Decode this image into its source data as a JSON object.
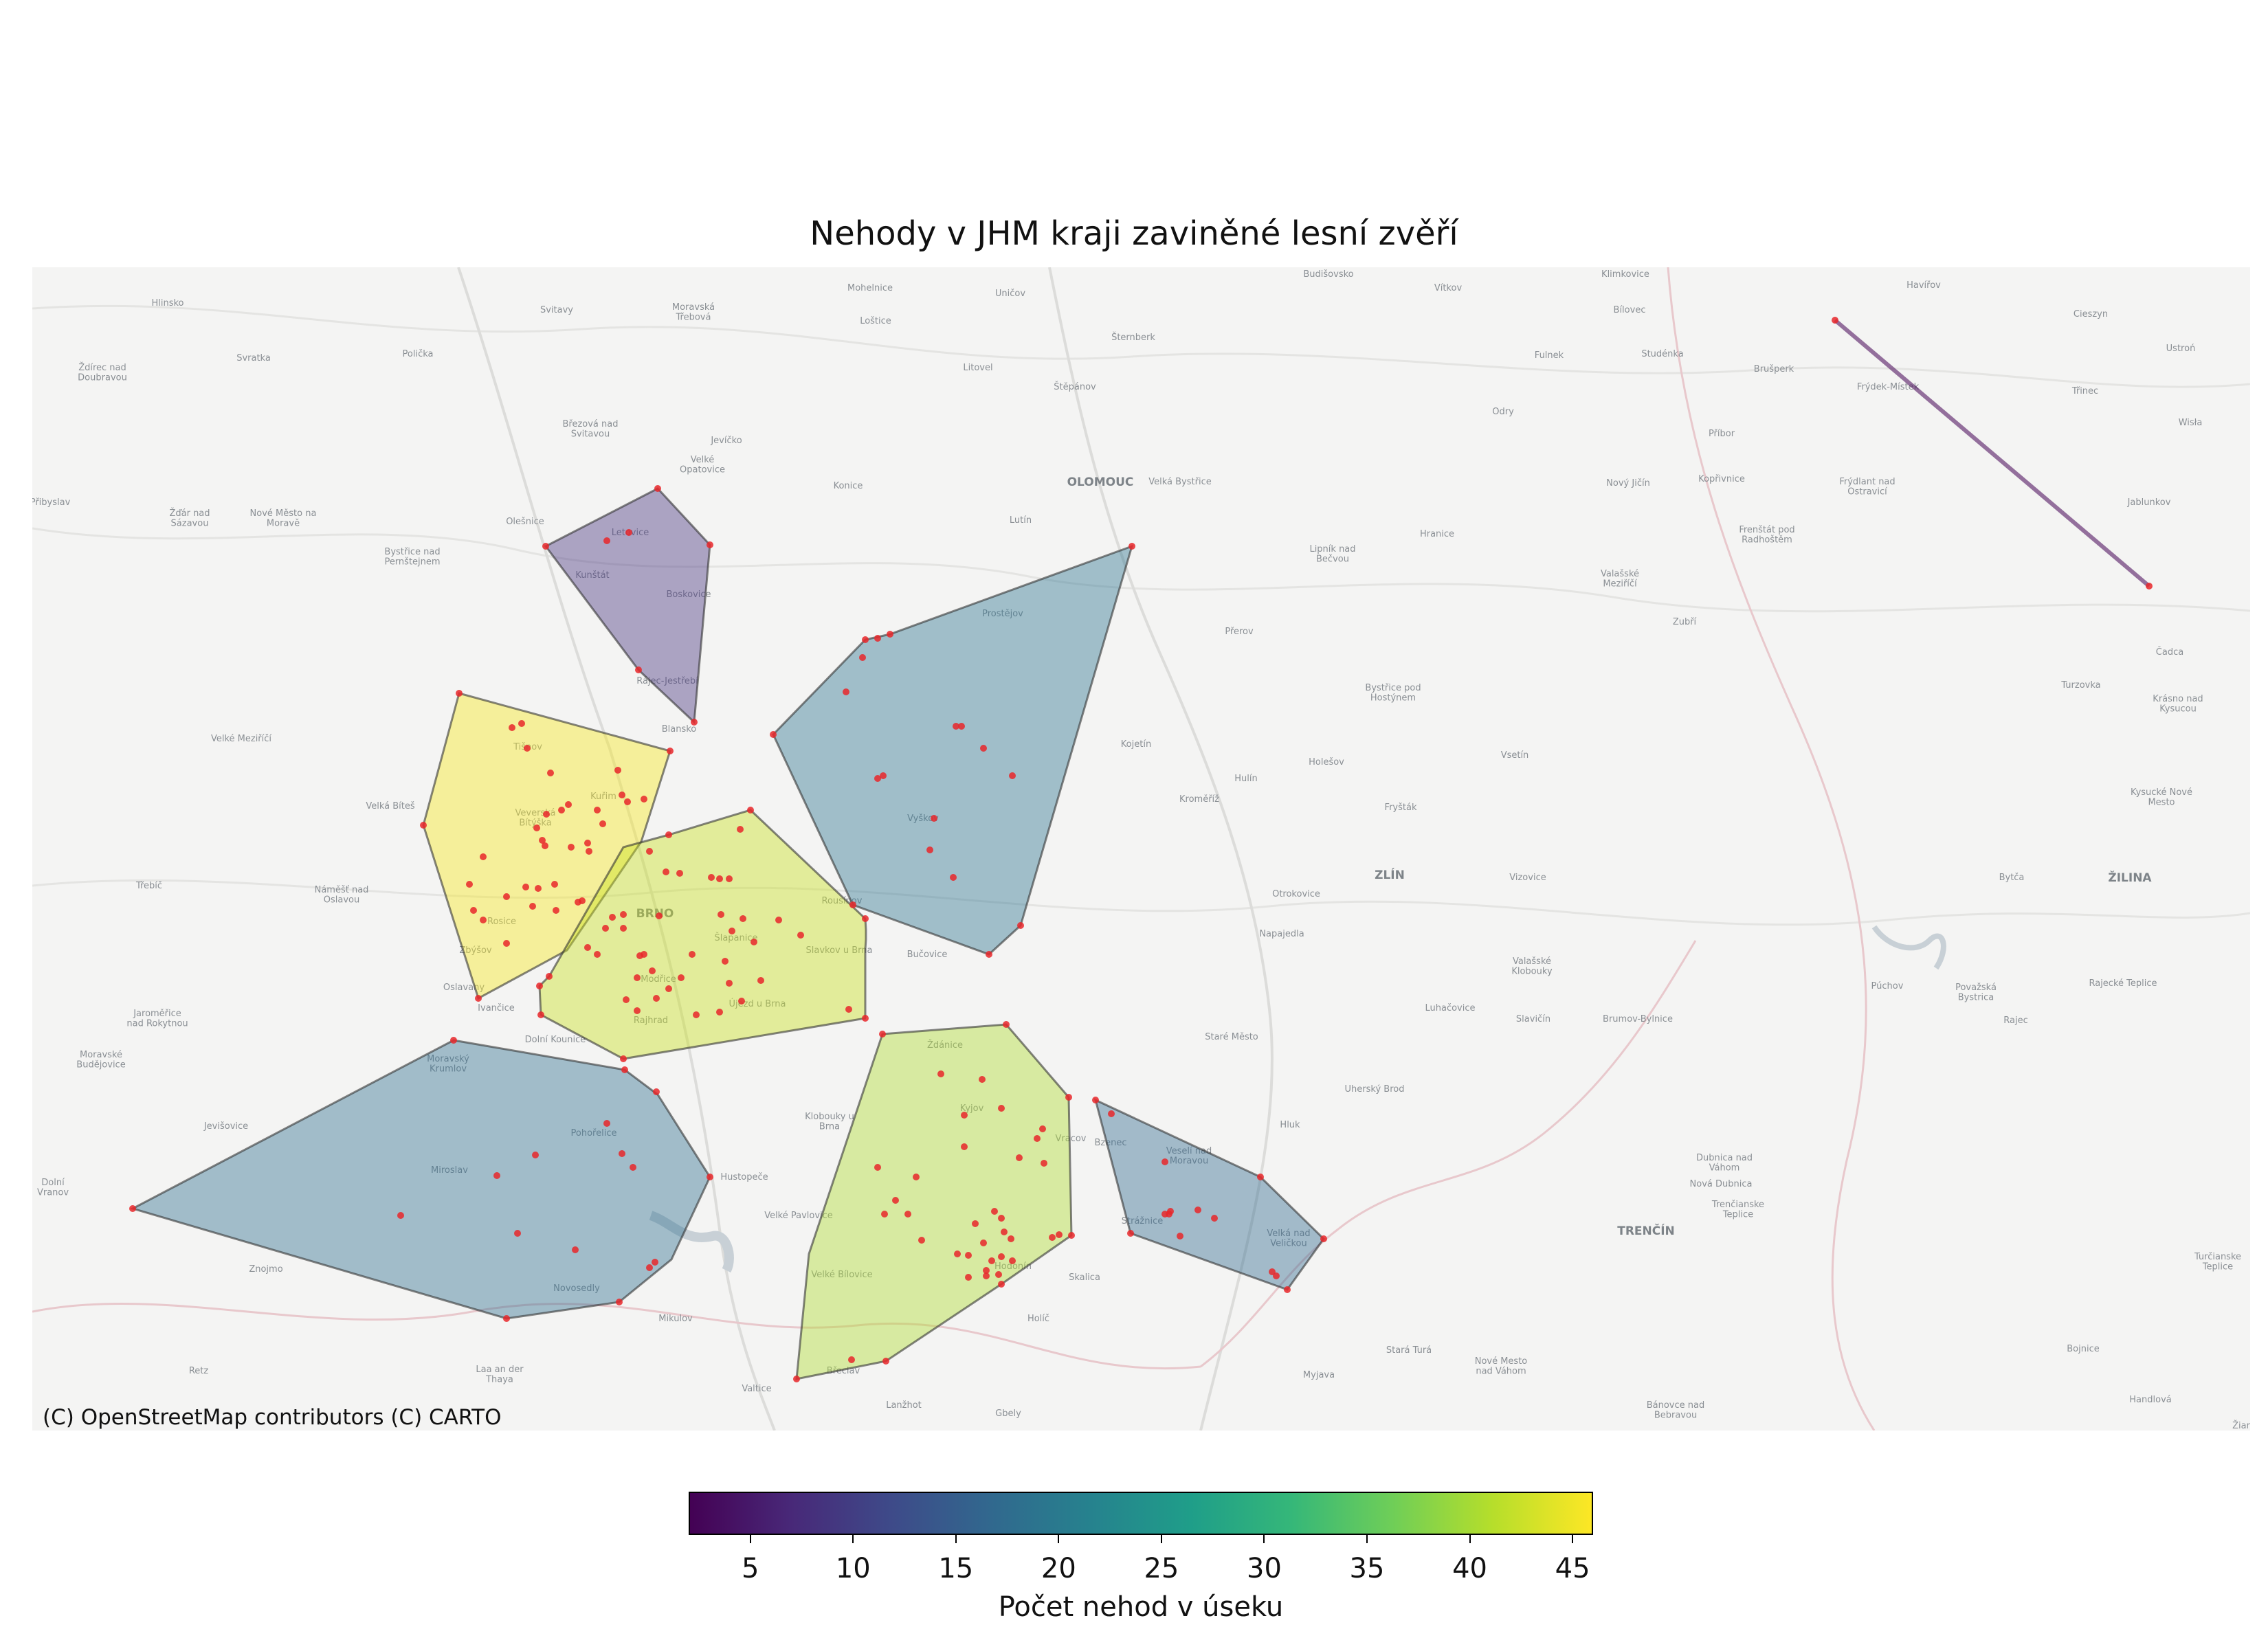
{
  "title": "Nehody v JHM kraji zaviněné lesní zvěří",
  "attribution": "(C) OpenStreetMap contributors (C) CARTO",
  "colorbar": {
    "label": "Počet nehod v úseku",
    "min": 2,
    "max": 46,
    "ticks": [
      5,
      10,
      15,
      20,
      25,
      30,
      35,
      40,
      45
    ],
    "colormap": "viridis"
  },
  "colors": {
    "map_background": "#f4f4f3",
    "point": "#e8272a",
    "polygon_outline": "#333333"
  },
  "places": {
    "hlinsko": "Hlinsko",
    "svitavy": "Svitavy",
    "moravska_trebova": "Moravská\nTřebová",
    "mohelnice": "Mohelnice",
    "unicov": "Uničov",
    "bruntal_budisov": "Budišovsko",
    "klimkovice": "Klimkovice",
    "vitkov": "Vítkov",
    "havirov": "Havířov",
    "cieszyn": "Cieszyn",
    "zdirec": "Ždírec nad\nDoubravou",
    "svratka": "Svratka",
    "policka": "Polička",
    "lostice": "Loštice",
    "sternberk": "Šternberk",
    "bilovec": "Bílovec",
    "ustron": "Ustroń",
    "litovel": "Litovel",
    "stepanov": "Štěpánov",
    "fulnek": "Fulnek",
    "studenka": "Studénka",
    "bruperk": "Brušperk",
    "frydek": "Frýdek-Místek",
    "trinec": "Třinec",
    "wisla": "Wisła",
    "brezova": "Březová nad\nSvitavou",
    "jevicko": "Jevíčko",
    "odry": "Odry",
    "pribor": "Příbor",
    "velke_opatovice": "Velké\nOpatovice",
    "konice": "Konice",
    "olomouc": "OLOMOUC",
    "velka_bystrice": "Velká Bystřice",
    "novy_jicin": "Nový Jičín",
    "koprivnice": "Kopřivnice",
    "frydlant": "Frýdlant nad\nOstravicí",
    "jablunkov": "Jablunkov",
    "pribyslav": "Přibyslav",
    "zdar": "Žďár nad\nSázavou",
    "nove_mesto": "Nové Město na\nMoravě",
    "olesnice": "Olešnice",
    "letovice": "Letovice",
    "lutin": "Lutín",
    "hranice": "Hranice",
    "frenstat": "Frenštát pod\nRadhoštěm",
    "bystrice_p": "Bystřice nad\nPernštejnem",
    "kunstat": "Kunštát",
    "boskovice": "Boskovice",
    "lipnik": "Lipník nad\nBečvou",
    "valmez": "Valašské\nMeziříčí",
    "zubri": "Zubří",
    "prostejov": "Prostějov",
    "prerov": "Přerov",
    "cadca": "Čadca",
    "rajec_jestrebi": "Rájec-Jestřebí",
    "blansko": "Blansko",
    "bystrice_h": "Bystřice pod\nHostýnem",
    "turzovka": "Turzovka",
    "krasno": "Krásno nad\nKysucou",
    "velke_mezirici": "Velké Meziříčí",
    "tisnov": "Tišnov",
    "kojetin": "Kojetín",
    "holesov": "Holešov",
    "vsetin": "Vsetín",
    "kurim": "Kuřim",
    "velka_bites": "Velká Bíteš",
    "veverska": "Veverská\nBítýška",
    "hulin": "Hulín",
    "kromeriz": "Kroměříž",
    "frystak": "Fryšták",
    "kysucke": "Kysucké Nové\nMesto",
    "vyskov": "Vyškov",
    "trebic": "Třebíč",
    "namest": "Náměšť nad\nOslavou",
    "brno": "BRNO",
    "zlin": "ZLÍN",
    "vizovice": "Vizovice",
    "bytca": "Bytča",
    "zilina": "ŽILINA",
    "rousinov": "Rousínov",
    "rosice": "Rosice",
    "otrokovice": "Otrokovice",
    "slapanice": "Šlapanice",
    "slavkov": "Slavkov u Brna",
    "bucovice": "Bučovice",
    "zbysov": "Zbýšov",
    "napajedla": "Napajedla",
    "valasske_klobouky": "Valašské\nKlobouky",
    "puchov": "Púchov",
    "povazska": "Považská\nBystrica",
    "rajecke": "Rajecké Teplice",
    "oslavany": "Oslavany",
    "ivancice": "Ivančice",
    "modrice": "Modřice",
    "ujezd": "Újezd u Brna",
    "luhacovice": "Luhačovice",
    "slavicin": "Slavičín",
    "brumov": "Brumov-Bylnice",
    "rajec": "Rajec",
    "jaromerice": "Jaroměřice\nnad Rokytnou",
    "dolni_kounice": "Dolní Kounice",
    "rajhrad": "Rajhrad",
    "zdanice": "Ždánice",
    "stare_mesto": "Staré Město",
    "moravske_budejovice": "Moravské\nBudějovice",
    "moravsky_krumlov": "Moravský\nKrumlov",
    "uhersky_brod": "Uherský Brod",
    "kyjov": "Kyjov",
    "klobouky": "Klobouky u\nBrna",
    "jevisovice": "Jevišovice",
    "pohorelice": "Pohořelice",
    "bzenec": "Bzenec",
    "veseli": "Veselí nad\nMoravou",
    "hluk": "Hluk",
    "vracov": "Vracov",
    "dubnica": "Dubnica nad\nVáhom",
    "miroslav": "Miroslav",
    "hustopece": "Hustopeče",
    "nova_dubnica": "Nová Dubnica",
    "trencianske": "Trenčianske\nTeplice",
    "velke_pavlovice": "Velké Pavlovice",
    "straznice": "Strážnice",
    "velka_nad_velickou": "Velká nad\nVeličkou",
    "trencin": "TRENČÍN",
    "dolni_vranov": "Dolní\nVranov",
    "znojmo": "Znojmo",
    "novosedly": "Novosedly",
    "velke_bilovice": "Velké Bílovice",
    "hodonin": "Hodonín",
    "skalica": "Skalica",
    "turcianske": "Turčianske\nTeplice",
    "mikulov": "Mikulov",
    "holic": "Holíč",
    "stara_tura": "Stará Turá",
    "nove_mesto_vah": "Nové Mesto\nnad Váhom",
    "bojnice": "Bojnice",
    "retz": "Retz",
    "breclav": "Břeclav",
    "myjava": "Myjava",
    "laa": "Laa an der\nThaya",
    "valtice": "Valtice",
    "lanzhot": "Lanžhot",
    "gbely": "Gbely",
    "banovce": "Bánovce nad\nBebravou",
    "handlova": "Handlová",
    "ziar": "Žiar"
  },
  "segments": [
    {
      "id": "letovice-blansko",
      "accidents": 7,
      "color": "#46337e"
    },
    {
      "id": "tisnov-rosice",
      "accidents": 45,
      "color": "#f6e620"
    },
    {
      "id": "brno-slavkov",
      "accidents": 42,
      "color": "#c8e020"
    },
    {
      "id": "vyskov",
      "accidents": 21,
      "color": "#2c728e"
    },
    {
      "id": "znojmo-pohorelice",
      "accidents": 20,
      "color": "#2e6e8e"
    },
    {
      "id": "hodonin-kyjov",
      "accidents": 40,
      "color": "#addc30"
    },
    {
      "id": "straznice-velicka",
      "accidents": 19,
      "color": "#306a8e"
    },
    {
      "id": "frydek-jablunkov",
      "accidents": 2,
      "color": "#440154"
    }
  ]
}
